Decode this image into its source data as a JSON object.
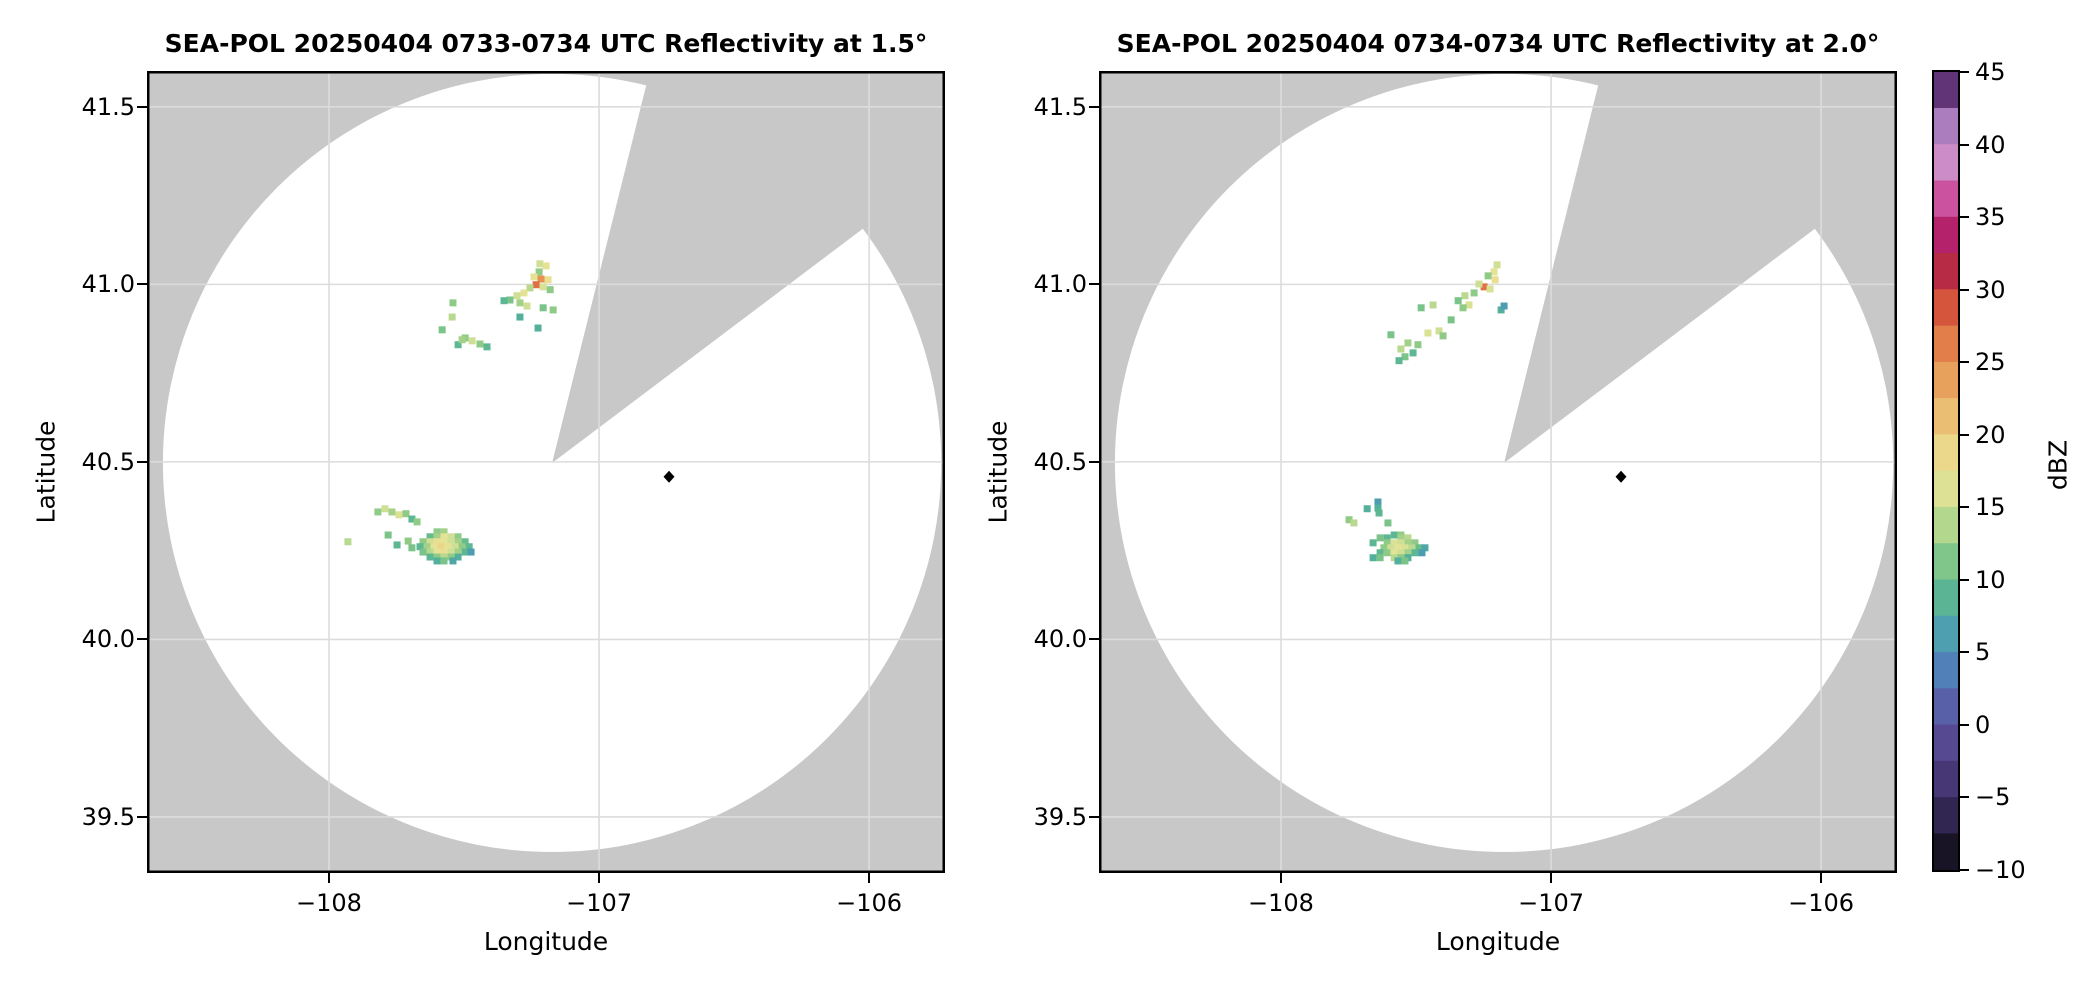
{
  "page": {
    "background": "#ffffff"
  },
  "chart_data": {
    "type": "radar_ppi_pair",
    "grid": true,
    "colors": {
      "no_data_gray": "#c8c8c8",
      "coverage_white": "#ffffff",
      "gridline": "#dcdcdc",
      "spine": "#000000",
      "marker": "#000000"
    },
    "panels": [
      {
        "title": "SEA-POL 20250404 0733-0734 UTC Reflectivity at 1.5°",
        "xlabel": "Longitude",
        "ylabel": "Latitude",
        "xlim": [
          -108.674,
          -105.719
        ],
        "ylim": [
          39.342,
          41.601
        ],
        "xticks": [
          -108,
          -107,
          -106
        ],
        "xtick_labels": [
          "−108",
          "−107",
          "−106"
        ],
        "yticks": [
          41.5,
          41.0,
          40.5,
          40.0,
          39.5
        ],
        "ytick_labels": [
          "41.5",
          "41.0",
          "40.5",
          "40.0",
          "39.5"
        ],
        "radar": {
          "center_lon": -107.174,
          "center_lat": 40.497,
          "radius_deg_lon": 1.441,
          "radius_deg_lat": 1.096,
          "blocked_sector_azimuth_deg": [
            14,
            53
          ]
        },
        "site_marker": {
          "lon": -106.741,
          "lat": 40.458
        },
        "echoes": [
          [
            -107.219,
            41.058,
            15
          ],
          [
            -107.196,
            41.052,
            17
          ],
          [
            -107.222,
            41.035,
            12
          ],
          [
            -107.241,
            41.021,
            17
          ],
          [
            -107.215,
            41.015,
            25
          ],
          [
            -107.189,
            41.013,
            18
          ],
          [
            -107.233,
            40.999,
            27
          ],
          [
            -107.207,
            40.993,
            16
          ],
          [
            -107.256,
            40.99,
            14
          ],
          [
            -107.181,
            40.985,
            12
          ],
          [
            -107.278,
            40.976,
            17
          ],
          [
            -107.304,
            40.968,
            15
          ],
          [
            -107.33,
            40.956,
            11
          ],
          [
            -107.352,
            40.954,
            9
          ],
          [
            -107.293,
            40.948,
            13
          ],
          [
            -107.267,
            40.939,
            15
          ],
          [
            -107.207,
            40.934,
            11
          ],
          [
            -107.17,
            40.928,
            12
          ],
          [
            -107.293,
            40.908,
            8
          ],
          [
            -107.226,
            40.877,
            8
          ],
          [
            -107.541,
            40.948,
            12
          ],
          [
            -107.544,
            40.908,
            14
          ],
          [
            -107.581,
            40.872,
            11
          ],
          [
            -107.496,
            40.849,
            12
          ],
          [
            -107.47,
            40.841,
            15
          ],
          [
            -107.441,
            40.832,
            12
          ],
          [
            -107.415,
            40.824,
            9
          ],
          [
            -107.522,
            40.83,
            9
          ],
          [
            -107.507,
            40.844,
            13
          ],
          [
            -107.819,
            40.359,
            12
          ],
          [
            -107.793,
            40.368,
            15
          ],
          [
            -107.767,
            40.359,
            13
          ],
          [
            -107.741,
            40.351,
            16
          ],
          [
            -107.715,
            40.354,
            12
          ],
          [
            -107.693,
            40.339,
            9
          ],
          [
            -107.674,
            40.331,
            12
          ],
          [
            -107.93,
            40.275,
            14
          ],
          [
            -107.781,
            40.294,
            11
          ],
          [
            -107.748,
            40.266,
            9
          ],
          [
            -107.707,
            40.277,
            12
          ],
          [
            -107.693,
            40.258,
            11
          ],
          [
            -107.6,
            40.303,
            12
          ],
          [
            -107.574,
            40.303,
            13
          ],
          [
            -107.626,
            40.289,
            10
          ],
          [
            -107.6,
            40.289,
            13
          ],
          [
            -107.574,
            40.289,
            17
          ],
          [
            -107.548,
            40.289,
            15
          ],
          [
            -107.522,
            40.289,
            12
          ],
          [
            -107.652,
            40.275,
            12
          ],
          [
            -107.626,
            40.275,
            15
          ],
          [
            -107.6,
            40.275,
            18
          ],
          [
            -107.574,
            40.275,
            17
          ],
          [
            -107.548,
            40.275,
            15
          ],
          [
            -107.522,
            40.275,
            13
          ],
          [
            -107.496,
            40.275,
            10
          ],
          [
            -107.663,
            40.261,
            9
          ],
          [
            -107.637,
            40.261,
            13
          ],
          [
            -107.611,
            40.261,
            17
          ],
          [
            -107.585,
            40.261,
            19
          ],
          [
            -107.559,
            40.261,
            17
          ],
          [
            -107.533,
            40.261,
            15
          ],
          [
            -107.507,
            40.261,
            12
          ],
          [
            -107.481,
            40.261,
            9
          ],
          [
            -107.652,
            40.246,
            11
          ],
          [
            -107.626,
            40.246,
            14
          ],
          [
            -107.6,
            40.246,
            17
          ],
          [
            -107.574,
            40.246,
            18
          ],
          [
            -107.548,
            40.246,
            15
          ],
          [
            -107.522,
            40.246,
            13
          ],
          [
            -107.496,
            40.246,
            9
          ],
          [
            -107.474,
            40.246,
            6
          ],
          [
            -107.626,
            40.232,
            9
          ],
          [
            -107.6,
            40.232,
            12
          ],
          [
            -107.574,
            40.232,
            14
          ],
          [
            -107.548,
            40.232,
            12
          ],
          [
            -107.522,
            40.232,
            8
          ],
          [
            -107.6,
            40.221,
            8
          ],
          [
            -107.574,
            40.221,
            11
          ],
          [
            -107.541,
            40.221,
            7
          ]
        ]
      },
      {
        "title": "SEA-POL 20250404 0734-0734 UTC Reflectivity at 2.0°",
        "xlabel": "Longitude",
        "ylabel": "Latitude",
        "xlim": [
          -108.674,
          -105.719
        ],
        "ylim": [
          39.342,
          41.601
        ],
        "xticks": [
          -108,
          -107,
          -106
        ],
        "xtick_labels": [
          "−108",
          "−107",
          "−106"
        ],
        "yticks": [
          41.5,
          41.0,
          40.5,
          40.0,
          39.5
        ],
        "ytick_labels": [
          "41.5",
          "41.0",
          "40.5",
          "40.0",
          "39.5"
        ],
        "radar": {
          "center_lon": -107.174,
          "center_lat": 40.497,
          "radius_deg_lon": 1.441,
          "radius_deg_lat": 1.096,
          "blocked_sector_azimuth_deg": [
            14,
            53
          ]
        },
        "site_marker": {
          "lon": -106.741,
          "lat": 40.458
        },
        "echoes": [
          [
            -107.2,
            41.055,
            15
          ],
          [
            -107.211,
            41.035,
            17
          ],
          [
            -107.233,
            41.024,
            12
          ],
          [
            -107.207,
            41.013,
            18
          ],
          [
            -107.248,
            40.993,
            27
          ],
          [
            -107.226,
            40.987,
            16
          ],
          [
            -107.267,
            41.001,
            15
          ],
          [
            -107.285,
            40.976,
            12
          ],
          [
            -107.319,
            40.968,
            14
          ],
          [
            -107.344,
            40.954,
            11
          ],
          [
            -107.304,
            40.942,
            16
          ],
          [
            -107.326,
            40.934,
            12
          ],
          [
            -107.37,
            40.9,
            11
          ],
          [
            -107.185,
            40.928,
            8
          ],
          [
            -107.174,
            40.939,
            6
          ],
          [
            -107.437,
            40.942,
            14
          ],
          [
            -107.481,
            40.934,
            11
          ],
          [
            -107.415,
            40.869,
            15
          ],
          [
            -107.4,
            40.855,
            12
          ],
          [
            -107.456,
            40.863,
            16
          ],
          [
            -107.493,
            40.83,
            12
          ],
          [
            -107.511,
            40.807,
            9
          ],
          [
            -107.53,
            40.835,
            13
          ],
          [
            -107.593,
            40.858,
            11
          ],
          [
            -107.556,
            40.818,
            14
          ],
          [
            -107.541,
            40.796,
            11
          ],
          [
            -107.563,
            40.785,
            9
          ],
          [
            -107.641,
            40.387,
            6
          ],
          [
            -107.641,
            40.37,
            8
          ],
          [
            -107.637,
            40.356,
            9
          ],
          [
            -107.681,
            40.368,
            8
          ],
          [
            -107.748,
            40.337,
            12
          ],
          [
            -107.73,
            40.328,
            14
          ],
          [
            -107.604,
            40.328,
            11
          ],
          [
            -107.581,
            40.294,
            9
          ],
          [
            -107.556,
            40.294,
            12
          ],
          [
            -107.633,
            40.286,
            11
          ],
          [
            -107.607,
            40.286,
            9
          ],
          [
            -107.556,
            40.286,
            13
          ],
          [
            -107.53,
            40.286,
            14
          ],
          [
            -107.659,
            40.272,
            9
          ],
          [
            -107.607,
            40.272,
            12
          ],
          [
            -107.581,
            40.272,
            16
          ],
          [
            -107.556,
            40.272,
            15
          ],
          [
            -107.53,
            40.272,
            13
          ],
          [
            -107.504,
            40.272,
            12
          ],
          [
            -107.619,
            40.258,
            12
          ],
          [
            -107.593,
            40.258,
            15
          ],
          [
            -107.567,
            40.258,
            17
          ],
          [
            -107.541,
            40.258,
            16
          ],
          [
            -107.515,
            40.258,
            14
          ],
          [
            -107.489,
            40.258,
            10
          ],
          [
            -107.467,
            40.258,
            7
          ],
          [
            -107.633,
            40.244,
            9
          ],
          [
            -107.607,
            40.244,
            12
          ],
          [
            -107.581,
            40.244,
            17
          ],
          [
            -107.556,
            40.244,
            15
          ],
          [
            -107.53,
            40.244,
            13
          ],
          [
            -107.504,
            40.244,
            9
          ],
          [
            -107.478,
            40.244,
            6
          ],
          [
            -107.659,
            40.23,
            8
          ],
          [
            -107.633,
            40.23,
            11
          ],
          [
            -107.581,
            40.23,
            14
          ],
          [
            -107.556,
            40.23,
            12
          ],
          [
            -107.53,
            40.23,
            8
          ],
          [
            -107.567,
            40.221,
            8
          ],
          [
            -107.541,
            40.221,
            11
          ]
        ]
      }
    ],
    "colorbar": {
      "label": "dBZ",
      "min": -10,
      "max": 45,
      "band_step": 2.5,
      "ticks": [
        45,
        40,
        35,
        30,
        25,
        20,
        15,
        10,
        5,
        0,
        -5,
        -10
      ],
      "tick_labels": [
        "45",
        "40",
        "35",
        "30",
        "25",
        "20",
        "15",
        "10",
        "5",
        "0",
        "−5",
        "−10"
      ],
      "stops": [
        [
          -10,
          "#0a0a0c"
        ],
        [
          -7.5,
          "#251c3e"
        ],
        [
          -5,
          "#3c2d63"
        ],
        [
          -2.5,
          "#514086"
        ],
        [
          0,
          "#5a509c"
        ],
        [
          2.5,
          "#566fb2"
        ],
        [
          5,
          "#4c90be"
        ],
        [
          7.5,
          "#4fad9f"
        ],
        [
          10,
          "#66bd8b"
        ],
        [
          12.5,
          "#99cd86"
        ],
        [
          15,
          "#cfe096"
        ],
        [
          17.5,
          "#e9e294"
        ],
        [
          20,
          "#eccd80"
        ],
        [
          22.5,
          "#e9b066"
        ],
        [
          25,
          "#e59254"
        ],
        [
          27.5,
          "#de6a40"
        ],
        [
          30,
          "#cb4038"
        ],
        [
          32.5,
          "#a3164f"
        ],
        [
          35,
          "#c42e86"
        ],
        [
          37.5,
          "#d276b8"
        ],
        [
          40,
          "#c6a2d5"
        ],
        [
          42.5,
          "#9058a8"
        ],
        [
          45,
          "#2f0f45"
        ]
      ]
    }
  }
}
